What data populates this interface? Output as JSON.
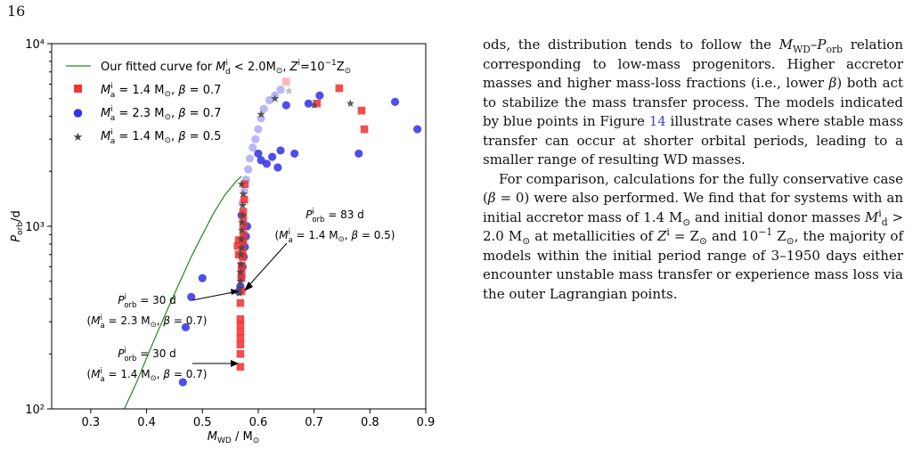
{
  "page": {
    "number": "16"
  },
  "chart_data": {
    "type": "scatter",
    "xlim": [
      0.23,
      0.9
    ],
    "ylim": [
      100,
      10000
    ],
    "y_scale": "log",
    "xticks": [
      0.3,
      0.4,
      0.5,
      0.6,
      0.7,
      0.8,
      0.9
    ],
    "xtick_labels": [
      "0.3",
      "0.4",
      "0.5",
      "0.6",
      "0.7",
      "0.8",
      "0.9"
    ],
    "yticks": [
      100,
      1000,
      10000
    ],
    "ytick_labels": [
      "10²",
      "10³",
      "10⁴"
    ],
    "xlabel": "M_WD / M_⊙",
    "ylabel": "P_orb/d",
    "grid": false,
    "legend_position": "upper-left",
    "legend": [
      {
        "label": "Our fitted curve for Mid < 2.0M⊙, Zi=10−1Z⊙",
        "marker": "line",
        "color": "#1f8a1f"
      },
      {
        "label": "Mia = 1.4 M⊙, β = 0.7",
        "marker": "square",
        "color": "#f03535"
      },
      {
        "label": "Mia = 2.3 M⊙, β = 0.7",
        "marker": "circle",
        "color": "#3535e8"
      },
      {
        "label": "Mia = 1.4 M⊙, β = 0.5",
        "marker": "star",
        "color": "#444444"
      }
    ],
    "fitted_curve": {
      "name": "Our fitted curve for Mid < 2.0M⊙, Zi=10−1Z⊙",
      "color": "#1f8a1f",
      "x": [
        0.36,
        0.38,
        0.4,
        0.42,
        0.44,
        0.46,
        0.48,
        0.5,
        0.52,
        0.54,
        0.56,
        0.57
      ],
      "y": [
        100,
        135,
        190,
        265,
        365,
        500,
        680,
        900,
        1180,
        1480,
        1760,
        1880
      ]
    },
    "series": [
      {
        "name": "Mia = 1.4 M⊙, β = 0.7",
        "marker": "square",
        "color": "#f03535",
        "x": [
          0.568,
          0.568,
          0.568,
          0.568,
          0.568,
          0.568,
          0.568,
          0.568,
          0.57,
          0.57,
          0.57,
          0.57,
          0.572,
          0.572,
          0.572,
          0.573,
          0.573,
          0.573,
          0.573,
          0.565,
          0.563,
          0.565,
          0.573,
          0.575,
          0.576,
          0.745,
          0.79,
          0.785,
          0.705,
          0.65
        ],
        "y": [
          170,
          200,
          225,
          245,
          265,
          290,
          310,
          380,
          440,
          520,
          560,
          610,
          680,
          740,
          830,
          830,
          900,
          1000,
          1100,
          840,
          780,
          700,
          1200,
          1400,
          1700,
          5700,
          3400,
          4300,
          4700,
          6200
        ],
        "faded": [
          false,
          false,
          false,
          false,
          false,
          false,
          false,
          false,
          false,
          false,
          false,
          false,
          false,
          false,
          false,
          false,
          false,
          false,
          false,
          false,
          false,
          false,
          false,
          false,
          false,
          false,
          false,
          false,
          false,
          true
        ]
      },
      {
        "name": "Mia = 2.3 M⊙, β = 0.7",
        "marker": "circle",
        "color": "#3535e8",
        "x": [
          0.465,
          0.47,
          0.48,
          0.5,
          0.565,
          0.568,
          0.57,
          0.572,
          0.574,
          0.576,
          0.578,
          0.58,
          0.57,
          0.572,
          0.575,
          0.578,
          0.582,
          0.585,
          0.59,
          0.595,
          0.6,
          0.605,
          0.61,
          0.62,
          0.63,
          0.64,
          0.65,
          0.665,
          0.69,
          0.71,
          0.78,
          0.845,
          0.885,
          0.6,
          0.605,
          0.615,
          0.625,
          0.635,
          0.64
        ],
        "y": [
          140,
          280,
          410,
          520,
          440,
          470,
          530,
          600,
          680,
          770,
          880,
          1000,
          1150,
          1350,
          1550,
          1800,
          2050,
          2350,
          2700,
          3000,
          3400,
          3900,
          4400,
          4900,
          5200,
          5600,
          4600,
          2500,
          4700,
          5200,
          2500,
          4800,
          3400,
          2500,
          2300,
          2200,
          2400,
          2100,
          2600
        ],
        "faded": [
          false,
          false,
          false,
          false,
          false,
          false,
          false,
          false,
          false,
          false,
          false,
          false,
          false,
          true,
          true,
          true,
          true,
          true,
          true,
          true,
          true,
          true,
          true,
          true,
          true,
          true,
          false,
          false,
          false,
          false,
          false,
          false,
          false,
          false,
          false,
          false,
          false,
          false,
          false
        ]
      },
      {
        "name": "Mia = 1.4 M⊙, β = 0.5",
        "marker": "star",
        "color": "#444444",
        "x": [
          0.566,
          0.567,
          0.568,
          0.568,
          0.569,
          0.569,
          0.57,
          0.57,
          0.571,
          0.571,
          0.572,
          0.572,
          0.573,
          0.57,
          0.605,
          0.63,
          0.7,
          0.765,
          0.655
        ],
        "y": [
          430,
          460,
          500,
          560,
          620,
          700,
          760,
          850,
          950,
          1050,
          1150,
          1300,
          1500,
          1700,
          4100,
          5000,
          4600,
          4700,
          5500
        ],
        "faded": [
          false,
          false,
          false,
          false,
          false,
          false,
          false,
          false,
          false,
          false,
          false,
          false,
          false,
          false,
          false,
          false,
          false,
          false,
          true
        ]
      }
    ],
    "annotations": [
      {
        "line1": "Piorb = 83 d",
        "line2": "(Mia = 1.4 M⊙, β = 0.5)"
      },
      {
        "line1": "Piorb = 30 d",
        "line2": "(Mia = 2.3 M⊙, β = 0.7)"
      },
      {
        "line1": "Piorb = 30 d",
        "line2": "(Mia = 1.4 M⊙, β = 0.7)"
      }
    ]
  },
  "text": {
    "p1": "ods, the distribution tends to follow the MWD–Porb relation corresponding to low-mass progenitors. Higher accretor masses and higher mass-loss fractions (i.e., lower β) both act to stabilize the mass transfer process. The models indicated by blue points in Figure 14 illustrate cases where stable mass transfer can occur at shorter orbital periods, leading to a smaller range of resulting WD masses.",
    "p2": "For comparison, calculations for the fully conservative case (β = 0) were also performed. We find that for systems with an initial accretor mass of 1.4 M⊙ and initial donor masses Mid > 2.0 M⊙ at metallicities of Zi = Z⊙ and 10−1 Z⊙, the majority of models within the initial period range of 3–1950 days either encounter unstable mass transfer or experience mass loss via the outer Lagrangian points.",
    "figure_ref": "14"
  }
}
